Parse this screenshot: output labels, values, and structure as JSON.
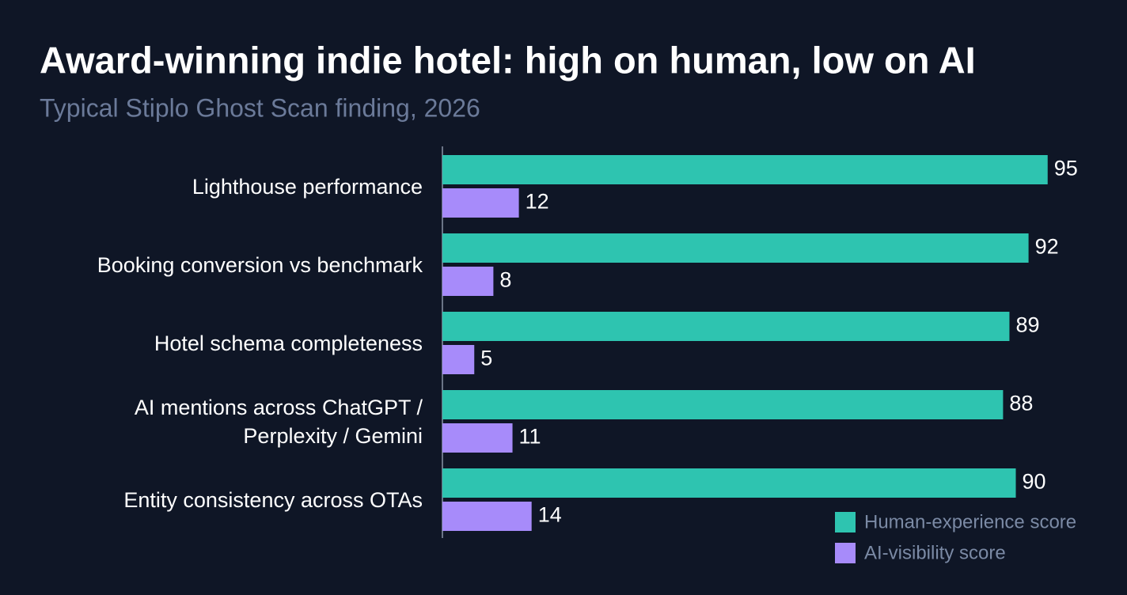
{
  "chart_data": {
    "type": "hbar",
    "title": "Award-winning indie hotel: high on human, low on AI",
    "subtitle": "Typical Stiplo Ghost Scan finding, 2026",
    "categories": [
      "Lighthouse performance",
      "Booking conversion vs benchmark",
      "Hotel schema completeness",
      "AI mentions across ChatGPT /\nPerplexity / Gemini",
      "Entity consistency across OTAs"
    ],
    "series": [
      {
        "name": "Human-experience score",
        "color": "#2ec4b0",
        "values": [
          95,
          92,
          89,
          88,
          90
        ]
      },
      {
        "name": "AI-visibility score",
        "color": "#a78bfa",
        "values": [
          12,
          8,
          5,
          11,
          14
        ]
      }
    ],
    "xlim": [
      0,
      100
    ],
    "legend": "bottom-right"
  }
}
